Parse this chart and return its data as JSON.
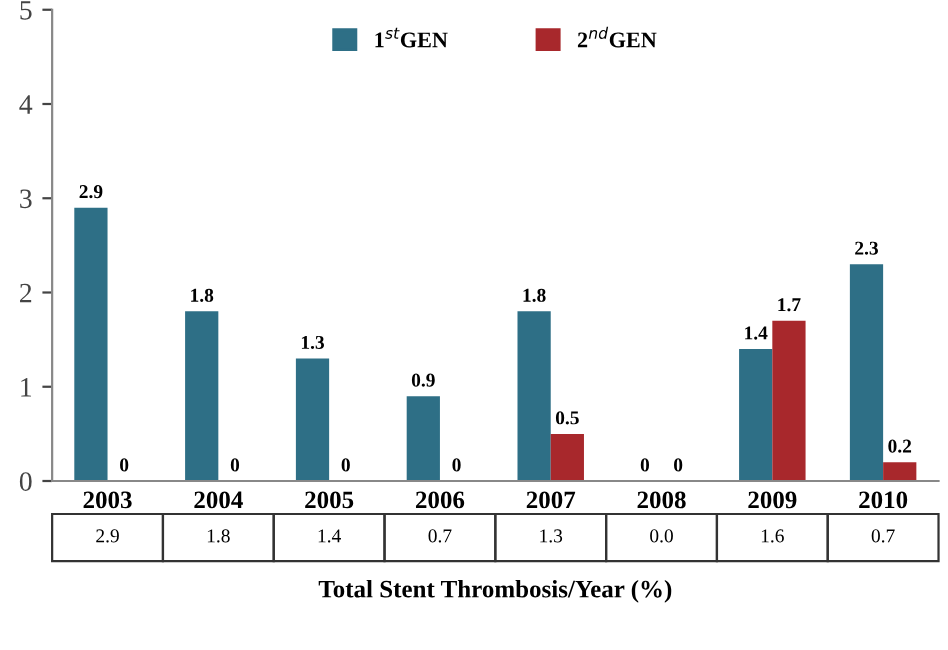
{
  "chart_data": {
    "type": "bar",
    "categories": [
      "2003",
      "2004",
      "2005",
      "2006",
      "2007",
      "2008",
      "2009",
      "2010"
    ],
    "series": [
      {
        "name": "1$^{st}$GEN",
        "color": "#2e6f86",
        "values": [
          2.9,
          1.8,
          1.3,
          0.9,
          1.8,
          0,
          1.4,
          2.3
        ],
        "value_labels": [
          "2.9",
          "1.8",
          "1.3",
          "0.9",
          "1.8",
          "0",
          "1.4",
          "2.3"
        ]
      },
      {
        "name": "2$^{nd}$GEN",
        "color": "#a8282c",
        "values": [
          0,
          0,
          0,
          0,
          0.5,
          0,
          1.7,
          0.2
        ],
        "value_labels": [
          "0",
          "0",
          "0",
          "0",
          "0.5",
          "0",
          "1.7",
          "0.2"
        ]
      }
    ],
    "ylim": [
      0,
      5
    ],
    "yticks": [
      0,
      1,
      2,
      3,
      4,
      5
    ],
    "xlabel": "Total Stent Thrombosis/Year (%)",
    "annotations": [
      "2.9",
      "1.8",
      "1.4",
      "0.7",
      "1.3",
      "0.0",
      "1.6",
      "0.7"
    ],
    "legend": "top",
    "grid": false
  }
}
